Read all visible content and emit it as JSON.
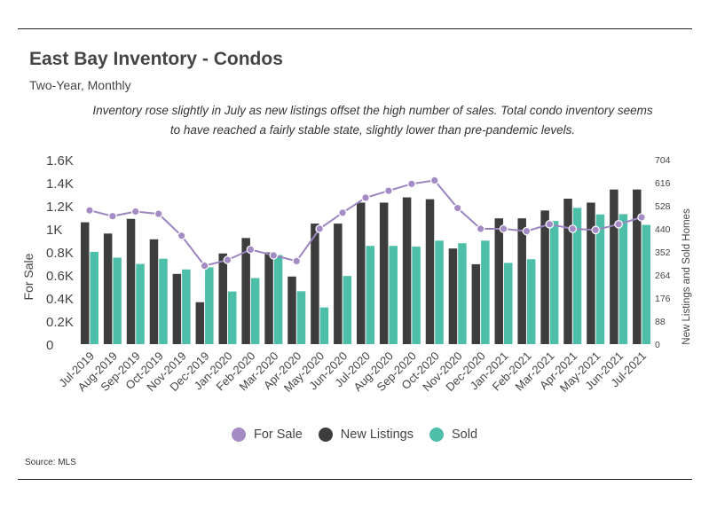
{
  "header": {
    "title": "East Bay Inventory - Condos",
    "subtitle": "Two-Year, Monthly",
    "note": "Inventory rose slightly in July as new listings offset the high number of  sales. Total condo inventory seems to have reached a fairly stable state, slightly lower than pre-pandemic levels.",
    "source": "Source:  MLS"
  },
  "colors": {
    "for_sale": "#a48bc4",
    "for_sale_line": "#9b84bf",
    "new_listings": "#3d3d3d",
    "sold": "#4dbfa8"
  },
  "chart_data": {
    "type": "bar",
    "categories": [
      "Jul-2019",
      "Aug-2019",
      "Sep-2019",
      "Oct-2019",
      "Nov-2019",
      "Dec-2019",
      "Jan-2020",
      "Feb-2020",
      "Mar-2020",
      "Apr-2020",
      "May-2020",
      "Jun-2020",
      "Jul-2020",
      "Aug-2020",
      "Sep-2020",
      "Oct-2020",
      "Nov-2020",
      "Dec-2020",
      "Jan-2021",
      "Feb-2021",
      "Mar-2021",
      "Apr-2021",
      "May-2021",
      "Jun-2021",
      "Jul-2021"
    ],
    "series": [
      {
        "name": "For Sale",
        "kind": "line",
        "axis": "left",
        "values": [
          1160,
          1110,
          1150,
          1130,
          940,
          680,
          730,
          820,
          770,
          720,
          1000,
          1140,
          1270,
          1330,
          1390,
          1420,
          1180,
          1000,
          1000,
          980,
          1040,
          1000,
          990,
          1040,
          1100
        ]
      },
      {
        "name": "New Listings",
        "kind": "bar",
        "axis": "right",
        "values": [
          465,
          422,
          478,
          400,
          268,
          160,
          346,
          405,
          350,
          258,
          460,
          460,
          540,
          540,
          560,
          553,
          365,
          305,
          480,
          480,
          510,
          555,
          540,
          590,
          590
        ]
      },
      {
        "name": "Sold",
        "kind": "bar",
        "axis": "right",
        "values": [
          352,
          330,
          306,
          326,
          285,
          293,
          201,
          252,
          340,
          202,
          140,
          260,
          375,
          375,
          372,
          395,
          385,
          395,
          310,
          324,
          470,
          520,
          495,
          496,
          455
        ]
      }
    ],
    "y_left": {
      "label": "For Sale",
      "ylim": [
        0,
        1600
      ],
      "ticks": [
        "0",
        "0.2K",
        "0.4K",
        "0.6K",
        "0.8K",
        "1K",
        "1.2K",
        "1.4K",
        "1.6K"
      ]
    },
    "y_right": {
      "label": "New Listings and Sold Homes",
      "ylim": [
        0,
        704
      ],
      "ticks": [
        "0",
        "88",
        "176",
        "264",
        "352",
        "440",
        "528",
        "616",
        "704"
      ]
    },
    "legend": {
      "position": "bottom",
      "entries": [
        "For Sale",
        "New Listings",
        "Sold"
      ]
    },
    "grid": false
  }
}
